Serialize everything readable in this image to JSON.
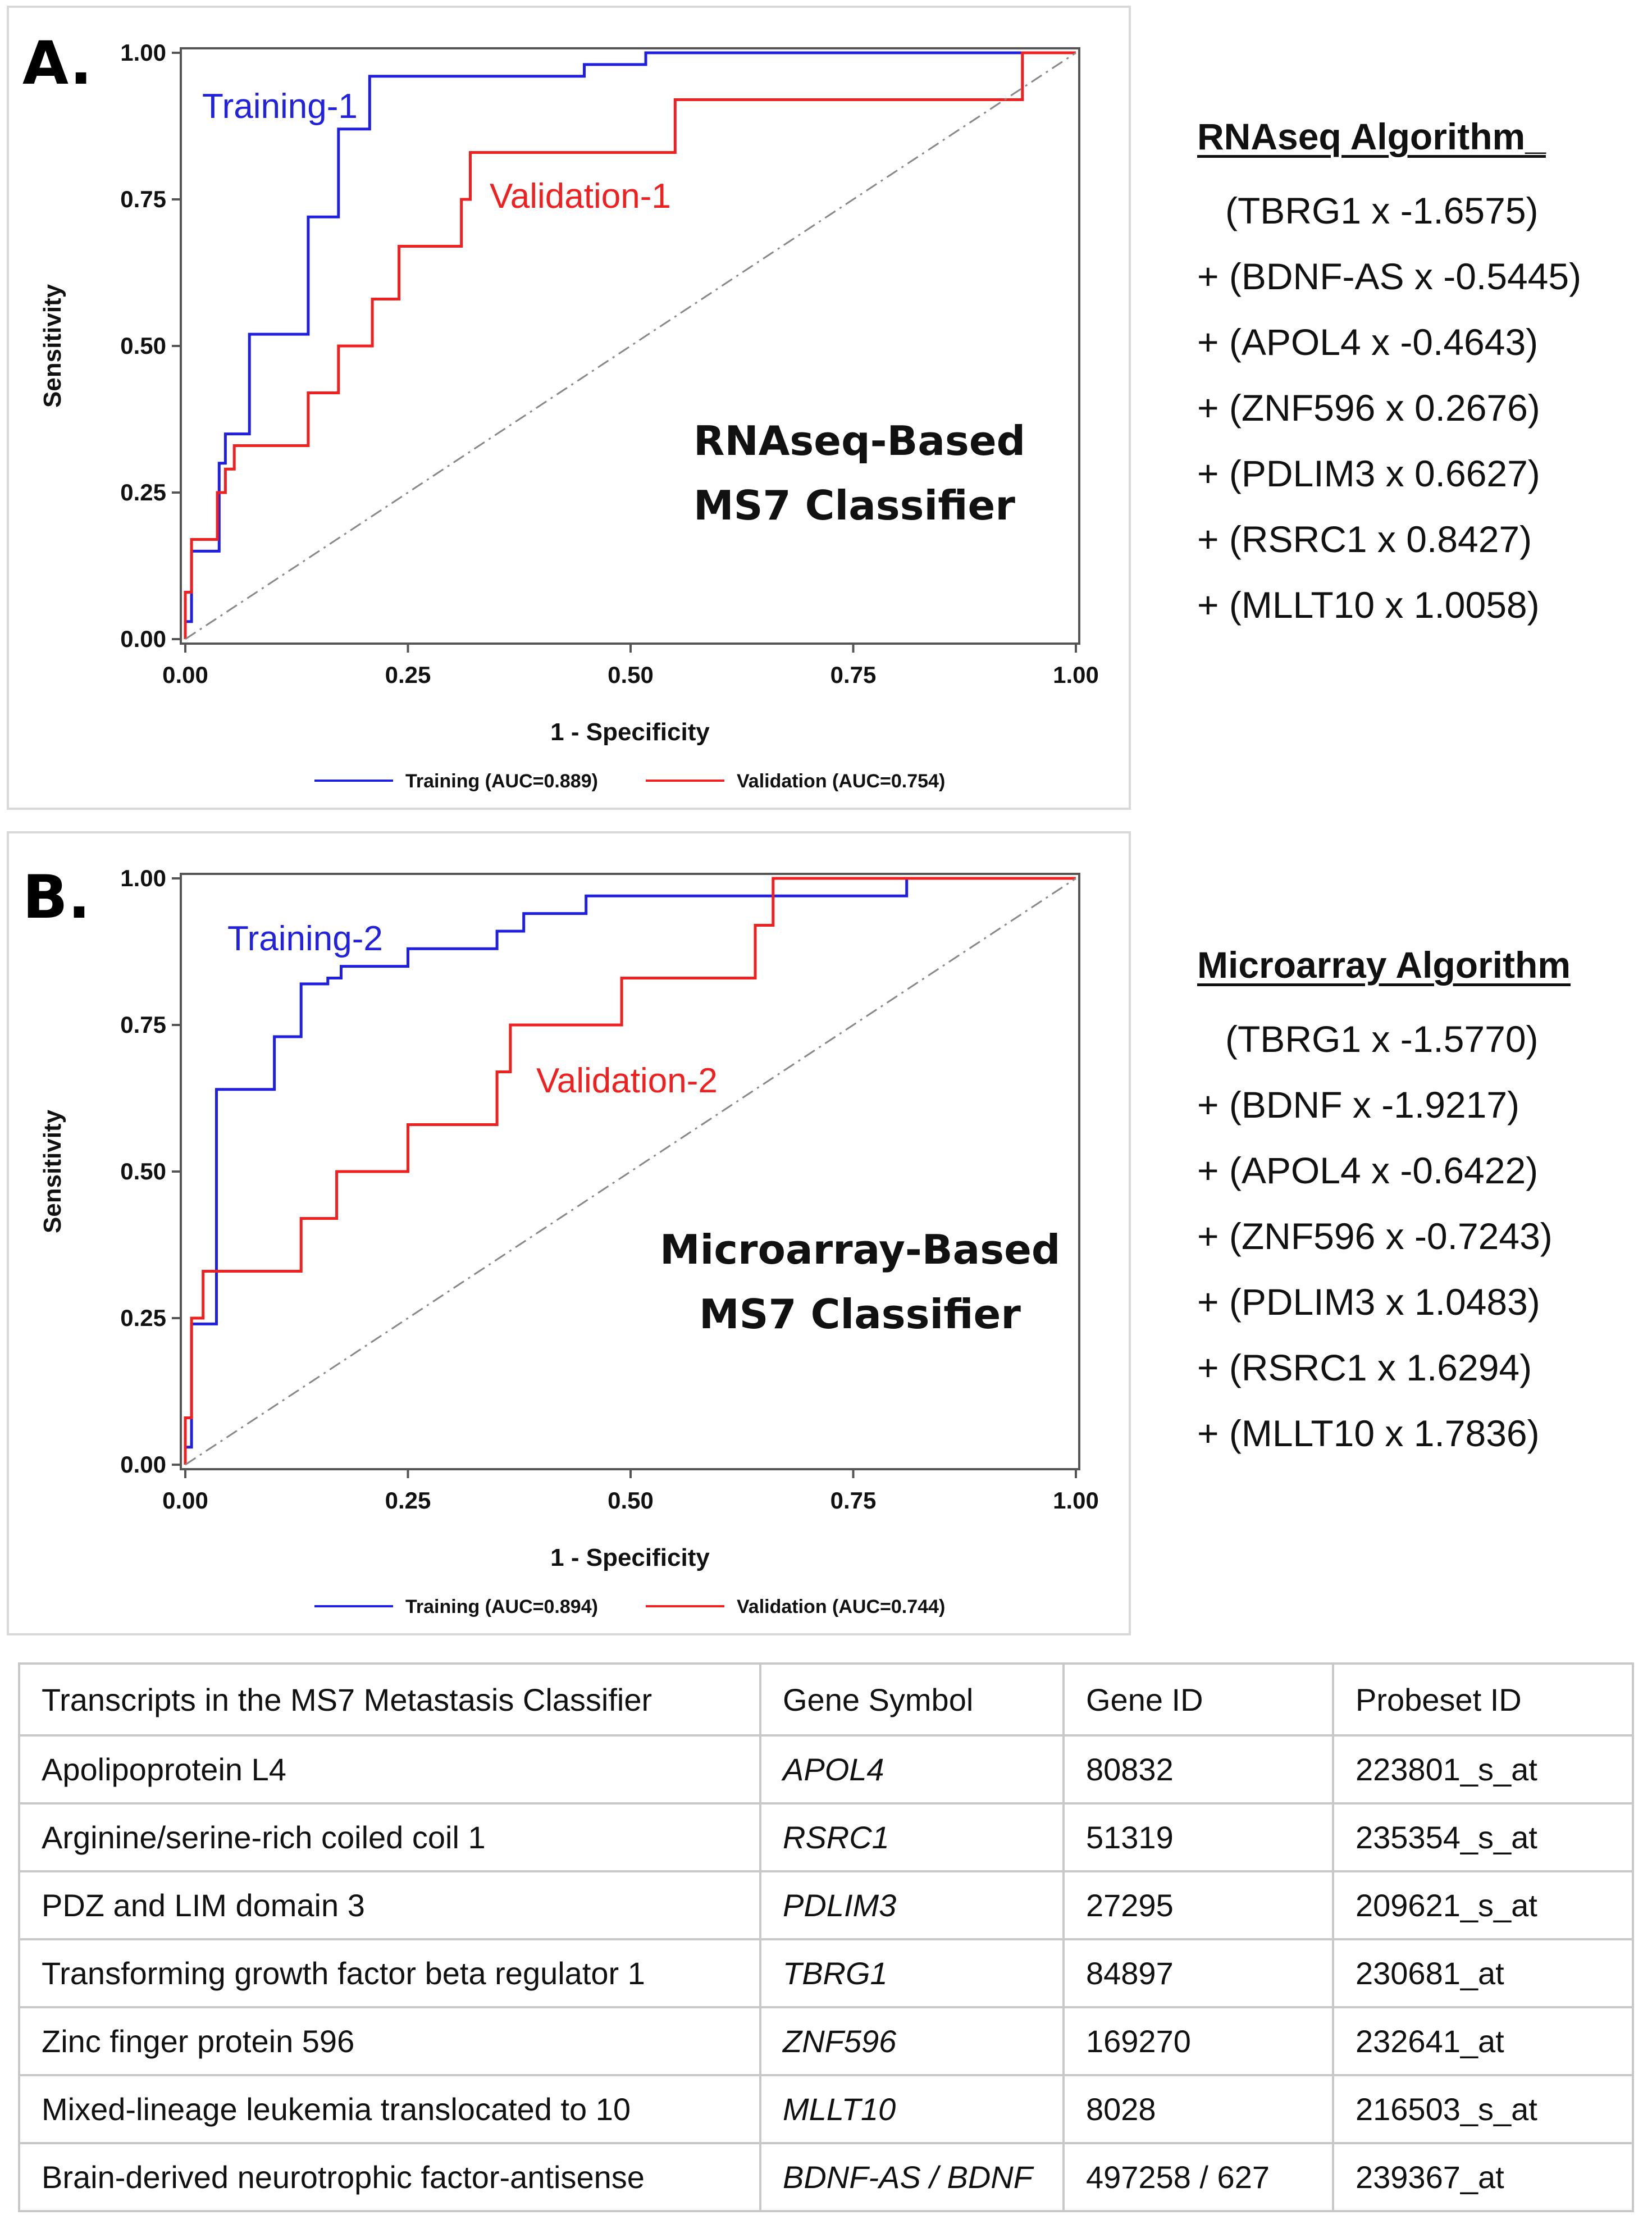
{
  "panels": [
    {
      "letter": "A.",
      "classifier_line1": "RNAseq-Based",
      "classifier_line2": "MS7 Classifier",
      "training_label": "Training-1",
      "validation_label": "Validation-1",
      "legend_training": "Training (AUC=0.889)",
      "legend_validation": "Validation (AUC=0.754)"
    },
    {
      "letter": "B.",
      "classifier_line1": "Microarray-Based",
      "classifier_line2": "MS7 Classifier",
      "training_label": "Training-2",
      "validation_label": "Validation-2",
      "legend_training": "Training (AUC=0.894)",
      "legend_validation": "Validation (AUC=0.744)"
    }
  ],
  "chart_data": [
    {
      "type": "line",
      "title": "RNAseq-Based MS7 Classifier",
      "xlabel": "1 - Specificity",
      "ylabel": "Sensitivity",
      "xlim": [
        0,
        1
      ],
      "ylim": [
        0,
        1
      ],
      "xticks": [
        "0.00",
        "0.25",
        "0.50",
        "0.75",
        "1.00"
      ],
      "yticks": [
        "0.00",
        "0.25",
        "0.50",
        "0.75",
        "1.00"
      ],
      "series": [
        {
          "name": "Training (AUC=0.889)",
          "color": "#1f1fe0",
          "x": [
            0,
            0,
            0.007,
            0.007,
            0.038,
            0.038,
            0.045,
            0.045,
            0.072,
            0.072,
            0.138,
            0.138,
            0.172,
            0.172,
            0.207,
            0.207,
            0.448,
            0.448,
            0.517,
            0.517,
            0.94,
            0.94,
            1.0
          ],
          "y": [
            0,
            0.03,
            0.03,
            0.15,
            0.15,
            0.3,
            0.3,
            0.35,
            0.35,
            0.52,
            0.52,
            0.72,
            0.72,
            0.87,
            0.87,
            0.96,
            0.96,
            0.98,
            0.98,
            1.0,
            1.0,
            1.0,
            1.0
          ]
        },
        {
          "name": "Validation (AUC=0.754)",
          "color": "#ee2020",
          "x": [
            0,
            0,
            0.007,
            0.007,
            0.036,
            0.036,
            0.045,
            0.045,
            0.055,
            0.055,
            0.138,
            0.138,
            0.172,
            0.172,
            0.21,
            0.21,
            0.24,
            0.24,
            0.31,
            0.31,
            0.32,
            0.32,
            0.55,
            0.55,
            0.94,
            0.94,
            1.0
          ],
          "y": [
            0,
            0.08,
            0.08,
            0.17,
            0.17,
            0.25,
            0.25,
            0.29,
            0.29,
            0.33,
            0.33,
            0.42,
            0.42,
            0.5,
            0.5,
            0.58,
            0.58,
            0.67,
            0.67,
            0.75,
            0.75,
            0.83,
            0.83,
            0.92,
            0.92,
            1.0,
            1.0
          ]
        },
        {
          "name": "reference",
          "color": "#888888",
          "x": [
            0,
            1
          ],
          "y": [
            0,
            1
          ]
        }
      ]
    },
    {
      "type": "line",
      "title": "Microarray-Based MS7 Classifier",
      "xlabel": "1 - Specificity",
      "ylabel": "Sensitivity",
      "xlim": [
        0,
        1
      ],
      "ylim": [
        0,
        1
      ],
      "xticks": [
        "0.00",
        "0.25",
        "0.50",
        "0.75",
        "1.00"
      ],
      "yticks": [
        "0.00",
        "0.25",
        "0.50",
        "0.75",
        "1.00"
      ],
      "series": [
        {
          "name": "Training (AUC=0.894)",
          "color": "#1f1fe0",
          "x": [
            0,
            0,
            0.007,
            0.007,
            0.035,
            0.035,
            0.1,
            0.1,
            0.13,
            0.13,
            0.16,
            0.16,
            0.175,
            0.175,
            0.25,
            0.25,
            0.35,
            0.35,
            0.38,
            0.38,
            0.45,
            0.45,
            0.81,
            0.81,
            1.0
          ],
          "y": [
            0,
            0.03,
            0.03,
            0.24,
            0.24,
            0.64,
            0.64,
            0.73,
            0.73,
            0.82,
            0.82,
            0.83,
            0.83,
            0.85,
            0.85,
            0.88,
            0.88,
            0.91,
            0.91,
            0.94,
            0.94,
            0.97,
            0.97,
            1.0,
            1.0
          ]
        },
        {
          "name": "Validation (AUC=0.744)",
          "color": "#ee2020",
          "x": [
            0,
            0,
            0.007,
            0.007,
            0.02,
            0.02,
            0.13,
            0.13,
            0.17,
            0.17,
            0.25,
            0.25,
            0.35,
            0.35,
            0.365,
            0.365,
            0.49,
            0.49,
            0.64,
            0.64,
            0.66,
            0.66,
            1.0
          ],
          "y": [
            0,
            0.08,
            0.08,
            0.25,
            0.25,
            0.33,
            0.33,
            0.42,
            0.42,
            0.5,
            0.5,
            0.58,
            0.58,
            0.67,
            0.67,
            0.75,
            0.75,
            0.83,
            0.83,
            0.92,
            0.92,
            1.0,
            1.0
          ]
        },
        {
          "name": "reference",
          "color": "#888888",
          "x": [
            0,
            1
          ],
          "y": [
            0,
            1
          ]
        }
      ]
    }
  ],
  "algorithms": [
    {
      "title": "RNAseq Algorithm_",
      "lines": [
        "(TBRG1 x -1.6575)",
        "+ (BDNF-AS x -0.5445)",
        "+ (APOL4 x -0.4643)",
        "+ (ZNF596 x 0.2676)",
        "+ (PDLIM3 x 0.6627)",
        "+ (RSRC1 x 0.8427)",
        "+ (MLLT10 x 1.0058)"
      ]
    },
    {
      "title": "Microarray Algorithm",
      "lines": [
        "(TBRG1 x -1.5770)",
        "+ (BDNF x -1.9217)",
        "+ (APOL4 x -0.6422)",
        "+ (ZNF596 x -0.7243)",
        "+ (PDLIM3 x 1.0483)",
        "+ (RSRC1 x 1.6294)",
        "+ (MLLT10 x 1.7836)"
      ]
    }
  ],
  "table": {
    "headers": [
      "Transcripts in the MS7 Metastasis Classifier",
      "Gene Symbol",
      "Gene ID",
      "Probeset ID"
    ],
    "rows": [
      [
        "Apolipoprotein L4",
        "APOL4",
        "80832",
        "223801_s_at"
      ],
      [
        "Arginine/serine-rich coiled coil 1",
        "RSRC1",
        "51319",
        "235354_s_at"
      ],
      [
        "PDZ and LIM domain 3",
        "PDLIM3",
        "27295",
        "209621_s_at"
      ],
      [
        "Transforming growth factor beta regulator 1",
        "TBRG1",
        "84897",
        "230681_at"
      ],
      [
        "Zinc finger protein 596",
        "ZNF596",
        "169270",
        "232641_at"
      ],
      [
        "Mixed-lineage leukemia translocated to 10",
        "MLLT10",
        "8028",
        "216503_s_at"
      ],
      [
        "Brain-derived neurotrophic factor-antisense",
        "BDNF-AS / BDNF",
        "497258 / 627",
        "239367_at"
      ]
    ]
  }
}
